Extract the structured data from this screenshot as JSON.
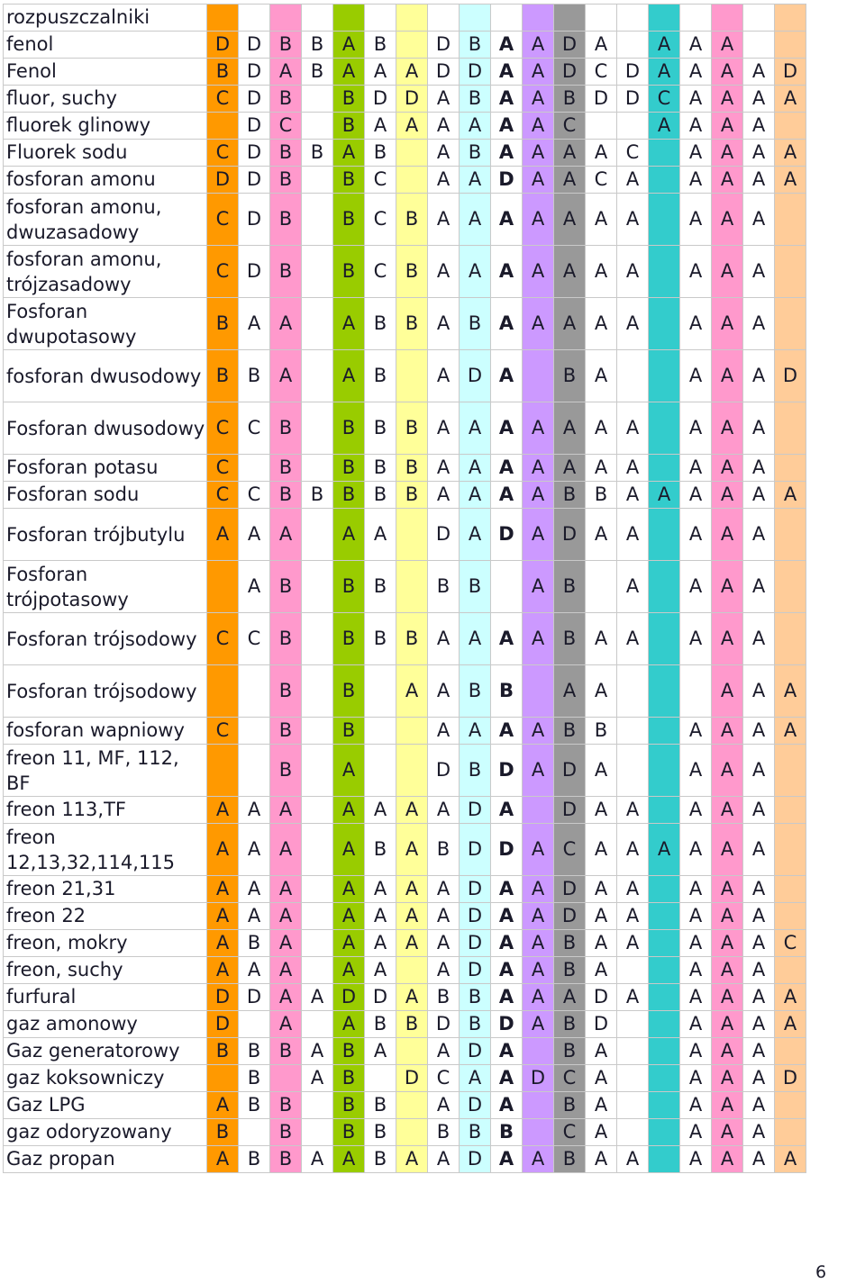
{
  "column_colors": [
    "#ff9900",
    "#ffffff",
    "#ff99cc",
    "#99cc00",
    "#ffff99",
    "#ccffff",
    "#cc99ff",
    "#999999",
    "#ffffff",
    "#33cccc",
    "#ffffff",
    "#ff99cc",
    "#ffffff",
    "#ffcc99"
  ],
  "col_map": [
    0,
    1,
    2,
    2,
    3,
    4,
    5,
    5,
    6,
    7,
    8,
    9,
    10,
    11,
    12,
    13
  ],
  "rows": [
    {
      "name": "rozpuszczalniki",
      "cells": [
        "",
        "",
        "",
        "",
        "",
        "",
        "",
        "",
        "",
        "",
        "",
        "",
        "",
        "",
        "",
        ""
      ]
    },
    {
      "name": "fenol",
      "cells": [
        "D",
        "D",
        "B",
        "B",
        "A",
        "B",
        "",
        "D",
        "B",
        "A",
        "A",
        "D",
        "A",
        "",
        "A",
        "A",
        "A"
      ]
    },
    {
      "name": "Fenol",
      "cells": [
        "B",
        "D",
        "A",
        "B",
        "A",
        "A",
        "A",
        "D",
        "D",
        "A",
        "A",
        "D",
        "C",
        "D",
        "A",
        "A",
        "A",
        "A",
        "D"
      ]
    },
    {
      "name": "fluor, suchy",
      "cells": [
        "C",
        "D",
        "B",
        "",
        "B",
        "D",
        "D",
        "A",
        "B",
        "A",
        "A",
        "B",
        "D",
        "D",
        "C",
        "A",
        "A",
        "A",
        "A"
      ]
    },
    {
      "name": "fluorek glinowy",
      "cells": [
        "",
        "D",
        "C",
        "",
        "B",
        "A",
        "A",
        "A",
        "A",
        "A",
        "A",
        "C",
        "",
        "",
        "A",
        "A",
        "A",
        "A"
      ]
    },
    {
      "name": "Fluorek sodu",
      "cells": [
        "C",
        "D",
        "B",
        "B",
        "A",
        "B",
        "",
        "A",
        "B",
        "A",
        "A",
        "A",
        "A",
        "C",
        "",
        "A",
        "A",
        "A",
        "A"
      ]
    },
    {
      "name": "fosforan amonu",
      "cells": [
        "D",
        "D",
        "B",
        "",
        "B",
        "C",
        "",
        "A",
        "A",
        "D",
        "A",
        "A",
        "C",
        "A",
        "",
        "A",
        "A",
        "A",
        "A"
      ]
    },
    {
      "name": "fosforan amonu, dwuzasadowy",
      "cells": [
        "C",
        "D",
        "B",
        "",
        "B",
        "C",
        "B",
        "A",
        "A",
        "A",
        "A",
        "A",
        "A",
        "A",
        "",
        "A",
        "A",
        "A",
        ""
      ]
    },
    {
      "name": "fosforan amonu, trójzasadowy",
      "cells": [
        "C",
        "D",
        "B",
        "",
        "B",
        "C",
        "B",
        "A",
        "A",
        "A",
        "A",
        "A",
        "A",
        "A",
        "",
        "A",
        "A",
        "A",
        ""
      ]
    },
    {
      "name": "Fosforan dwupotasowy",
      "cells": [
        "B",
        "A",
        "A",
        "",
        "A",
        "B",
        "B",
        "A",
        "B",
        "A",
        "A",
        "A",
        "A",
        "A",
        "",
        "A",
        "A",
        "A",
        ""
      ]
    },
    {
      "name": "fosforan dwusodowy",
      "cells": [
        "B",
        "B",
        "A",
        "",
        "A",
        "B",
        "",
        "A",
        "D",
        "A",
        "",
        "B",
        "A",
        "",
        "",
        "A",
        "A",
        "A",
        "D"
      ]
    },
    {
      "name": "Fosforan dwusodowy",
      "cells": [
        "C",
        "C",
        "B",
        "",
        "B",
        "B",
        "B",
        "A",
        "A",
        "A",
        "A",
        "A",
        "A",
        "A",
        "",
        "A",
        "A",
        "A",
        ""
      ]
    },
    {
      "name": "Fosforan potasu",
      "cells": [
        "C",
        "",
        "B",
        "",
        "B",
        "B",
        "B",
        "A",
        "A",
        "A",
        "A",
        "A",
        "A",
        "A",
        "",
        "A",
        "A",
        "A",
        ""
      ]
    },
    {
      "name": "Fosforan sodu",
      "cells": [
        "C",
        "C",
        "B",
        "B",
        "B",
        "B",
        "B",
        "A",
        "A",
        "A",
        "A",
        "B",
        "B",
        "A",
        "A",
        "A",
        "A",
        "A",
        "A"
      ]
    },
    {
      "name": "Fosforan trójbutylu",
      "cells": [
        "A",
        "A",
        "A",
        "",
        "A",
        "A",
        "",
        "D",
        "A",
        "D",
        "A",
        "D",
        "A",
        "A",
        "",
        "A",
        "A",
        "A",
        ""
      ]
    },
    {
      "name": "Fosforan trójpotasowy",
      "cells": [
        "",
        "A",
        "B",
        "",
        "B",
        "B",
        "",
        "B",
        "B",
        "",
        "A",
        "B",
        "",
        "A",
        "",
        "A",
        "A",
        "A",
        ""
      ]
    },
    {
      "name": "Fosforan trójsodowy",
      "cells": [
        "C",
        "C",
        "B",
        "",
        "B",
        "B",
        "B",
        "A",
        "A",
        "A",
        "A",
        "B",
        "A",
        "A",
        "",
        "A",
        "A",
        "A",
        ""
      ]
    },
    {
      "name": "Fosforan trójsodowy",
      "cells": [
        "",
        "",
        "B",
        "",
        "B",
        "",
        "A",
        "A",
        "B",
        "B",
        "",
        "A",
        "A",
        "",
        "",
        "",
        "A",
        "A",
        "A"
      ]
    },
    {
      "name": "fosforan wapniowy",
      "cells": [
        "C",
        "",
        "B",
        "",
        "B",
        "",
        "",
        "A",
        "A",
        "A",
        "A",
        "B",
        "B",
        "",
        "",
        "A",
        "A",
        "A",
        "A"
      ]
    },
    {
      "name": "freon 11, MF, 112, BF",
      "cells": [
        "",
        "",
        "B",
        "",
        "A",
        "",
        "",
        "D",
        "B",
        "D",
        "A",
        "D",
        "A",
        "",
        "",
        "A",
        "A",
        "A",
        ""
      ]
    },
    {
      "name": "freon 113,TF",
      "cells": [
        "A",
        "A",
        "A",
        "",
        "A",
        "A",
        "A",
        "A",
        "D",
        "A",
        "",
        "D",
        "A",
        "A",
        "",
        "A",
        "A",
        "A",
        ""
      ]
    },
    {
      "name": "freon 12,13,32,114,115",
      "cells": [
        "A",
        "A",
        "A",
        "",
        "A",
        "B",
        "A",
        "B",
        "D",
        "D",
        "A",
        "C",
        "A",
        "A",
        "A",
        "A",
        "A",
        "A",
        ""
      ]
    },
    {
      "name": "freon 21,31",
      "cells": [
        "A",
        "A",
        "A",
        "",
        "A",
        "A",
        "A",
        "A",
        "D",
        "A",
        "A",
        "D",
        "A",
        "A",
        "",
        "A",
        "A",
        "A",
        ""
      ]
    },
    {
      "name": "freon 22",
      "cells": [
        "A",
        "A",
        "A",
        "",
        "A",
        "A",
        "A",
        "A",
        "D",
        "A",
        "A",
        "D",
        "A",
        "A",
        "",
        "A",
        "A",
        "A",
        ""
      ]
    },
    {
      "name": "freon, mokry",
      "cells": [
        "A",
        "B",
        "A",
        "",
        "A",
        "A",
        "A",
        "A",
        "D",
        "A",
        "A",
        "B",
        "A",
        "A",
        "",
        "A",
        "A",
        "A",
        "C"
      ]
    },
    {
      "name": "freon, suchy",
      "cells": [
        "A",
        "A",
        "A",
        "",
        "A",
        "A",
        "",
        "A",
        "D",
        "A",
        "A",
        "B",
        "A",
        "",
        "",
        "A",
        "A",
        "A",
        ""
      ]
    },
    {
      "name": "furfural",
      "cells": [
        "D",
        "D",
        "A",
        "A",
        "D",
        "D",
        "A",
        "B",
        "B",
        "A",
        "A",
        "A",
        "D",
        "A",
        "",
        "A",
        "A",
        "A",
        "A"
      ]
    },
    {
      "name": "gaz amonowy",
      "cells": [
        "D",
        "",
        "A",
        "",
        "A",
        "B",
        "B",
        "D",
        "B",
        "D",
        "A",
        "B",
        "D",
        "",
        "",
        "A",
        "A",
        "A",
        "A"
      ]
    },
    {
      "name": "Gaz generatorowy",
      "cells": [
        "B",
        "B",
        "B",
        "A",
        "B",
        "A",
        "",
        "A",
        "D",
        "A",
        "",
        "B",
        "A",
        "",
        "",
        "A",
        "A",
        "A",
        ""
      ]
    },
    {
      "name": "gaz koksowniczy",
      "cells": [
        "",
        "B",
        "",
        "A",
        "B",
        "",
        "D",
        "C",
        "A",
        "A",
        "D",
        "C",
        "A",
        "",
        "",
        "A",
        "A",
        "A",
        "D"
      ]
    },
    {
      "name": "Gaz LPG",
      "cells": [
        "A",
        "B",
        "B",
        "",
        "B",
        "B",
        "",
        "A",
        "D",
        "A",
        "",
        "B",
        "A",
        "",
        "",
        "A",
        "A",
        "A",
        ""
      ]
    },
    {
      "name": "gaz odoryzowany",
      "cells": [
        "B",
        "",
        "B",
        "",
        "B",
        "B",
        "",
        "B",
        "B",
        "B",
        "",
        "C",
        "A",
        "",
        "",
        "A",
        "A",
        "A",
        ""
      ]
    },
    {
      "name": "Gaz propan",
      "cells": [
        "A",
        "B",
        "B",
        "A",
        "A",
        "B",
        "A",
        "A",
        "D",
        "A",
        "A",
        "B",
        "A",
        "A",
        "",
        "A",
        "A",
        "A",
        "A"
      ]
    }
  ],
  "bold_columns": [
    9
  ],
  "page_number": "6"
}
